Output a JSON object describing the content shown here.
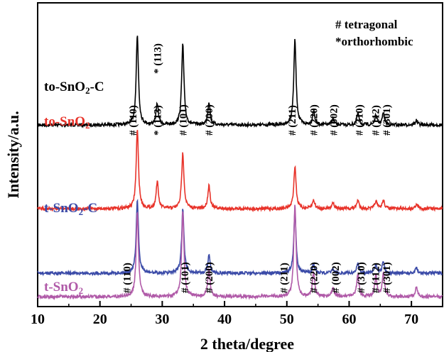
{
  "chart_data": {
    "type": "line",
    "xlabel": "2 theta/degree",
    "ylabel": "Intensity/a.u.",
    "xlim": [
      10,
      75
    ],
    "x_ticks": [
      "10",
      "20",
      "30",
      "40",
      "50",
      "60",
      "70"
    ],
    "y_ticks": "none",
    "legend_notes": [
      "# tetragonal",
      "*orthorhombic"
    ],
    "series": [
      {
        "name": "to-SnO2-C",
        "name_main": "to-SnO",
        "name_sub": "2",
        "name_suffix": "-C",
        "color": "#000000",
        "peaks": [
          {
            "x": 26.0,
            "height": 0.78
          },
          {
            "x": 29.2,
            "height": 0.18
          },
          {
            "x": 33.3,
            "height": 0.7
          },
          {
            "x": 37.5,
            "height": 0.2
          },
          {
            "x": 51.3,
            "height": 0.74
          },
          {
            "x": 54.3,
            "height": 0.12
          },
          {
            "x": 57.4,
            "height": 0.05
          },
          {
            "x": 61.4,
            "height": 0.1
          },
          {
            "x": 64.3,
            "height": 0.08
          },
          {
            "x": 65.5,
            "height": 0.1
          },
          {
            "x": 70.8,
            "height": 0.04
          }
        ],
        "annotations": [
          {
            "text": "* (113)",
            "x": 29.2
          }
        ]
      },
      {
        "name": "to-SnO2",
        "name_main": "to-SnO",
        "name_sub": "2",
        "name_suffix": "",
        "color": "#e8332a",
        "peaks": [
          {
            "x": 26.0,
            "height": 0.74
          },
          {
            "x": 29.2,
            "height": 0.25
          },
          {
            "x": 33.3,
            "height": 0.52
          },
          {
            "x": 37.5,
            "height": 0.22
          },
          {
            "x": 51.3,
            "height": 0.4
          },
          {
            "x": 54.3,
            "height": 0.08
          },
          {
            "x": 57.4,
            "height": 0.06
          },
          {
            "x": 61.4,
            "height": 0.08
          },
          {
            "x": 64.3,
            "height": 0.07
          },
          {
            "x": 65.5,
            "height": 0.08
          },
          {
            "x": 70.8,
            "height": 0.04
          }
        ],
        "annotations": [
          {
            "text": "# (110)",
            "x": 25.3
          },
          {
            "text": "* (113)",
            "x": 29.2
          },
          {
            "text": "# (101)",
            "x": 33.3
          },
          {
            "text": "# (200)",
            "x": 37.5
          },
          {
            "text": "# (211)",
            "x": 50.8
          },
          {
            "text": "# (220)",
            "x": 54.3
          },
          {
            "text": "# (002)",
            "x": 57.5
          },
          {
            "text": "# (310)",
            "x": 61.6
          },
          {
            "text": "# (112)",
            "x": 64.2
          },
          {
            "text": "# (301)",
            "x": 66.0
          }
        ]
      },
      {
        "name": "t-SnO2-C",
        "name_main": "t-SnO",
        "name_sub": "2",
        "name_suffix": "-C",
        "color": "#3b4ba8",
        "peaks": [
          {
            "x": 26.0,
            "height": 0.9
          },
          {
            "x": 33.3,
            "height": 0.78
          },
          {
            "x": 37.5,
            "height": 0.22
          },
          {
            "x": 51.3,
            "height": 0.75
          },
          {
            "x": 54.3,
            "height": 0.12
          },
          {
            "x": 57.4,
            "height": 0.05
          },
          {
            "x": 61.4,
            "height": 0.12
          },
          {
            "x": 64.3,
            "height": 0.1
          },
          {
            "x": 65.5,
            "height": 0.14
          },
          {
            "x": 70.8,
            "height": 0.06
          }
        ],
        "annotations": []
      },
      {
        "name": "t-SnO2",
        "name_main": "t-SnO",
        "name_sub": "2",
        "name_suffix": "",
        "color": "#b05aa8",
        "peaks": [
          {
            "x": 26.0,
            "height": 0.92
          },
          {
            "x": 33.3,
            "height": 0.93
          },
          {
            "x": 37.5,
            "height": 0.3
          },
          {
            "x": 51.3,
            "height": 1.0
          },
          {
            "x": 54.3,
            "height": 0.26
          },
          {
            "x": 57.4,
            "height": 0.1
          },
          {
            "x": 61.4,
            "height": 0.24
          },
          {
            "x": 64.3,
            "height": 0.22
          },
          {
            "x": 65.5,
            "height": 0.26
          },
          {
            "x": 70.8,
            "height": 0.1
          }
        ],
        "annotations": [
          {
            "text": "# (110)",
            "x": 24.3
          },
          {
            "text": "# (101)",
            "x": 33.6
          },
          {
            "text": "# (200)",
            "x": 37.5
          },
          {
            "text": "# (211)",
            "x": 49.5
          },
          {
            "text": "# (220)",
            "x": 54.3
          },
          {
            "text": "# (002)",
            "x": 57.8
          },
          {
            "text": "# (310)",
            "x": 61.9
          },
          {
            "text": "# (112)",
            "x": 64.2
          },
          {
            "text": "# (301)",
            "x": 66.0
          }
        ]
      }
    ]
  }
}
